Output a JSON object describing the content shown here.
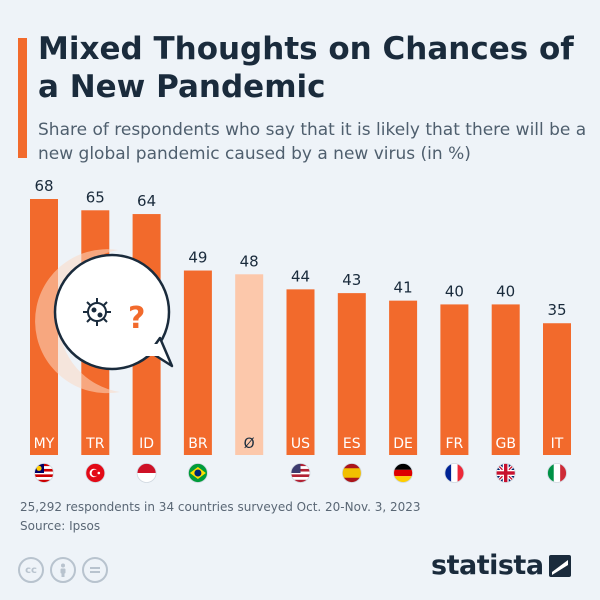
{
  "title": "Mixed Thoughts on Chances of a New Pandemic",
  "subtitle": "Share of respondents who say that it is likely that there will be a new global pandemic caused by a new virus (in %)",
  "footer_note": "25,292 respondents in 34 countries surveyed Oct. 20-Nov. 3, 2023",
  "source": "Source: Ipsos",
  "logo": "statista",
  "colors": {
    "bar": "#f26a2c",
    "average_bar": "#fcc8ab",
    "text": "#1a2b3c",
    "background": "#eef3f8"
  },
  "chart_data": {
    "type": "bar",
    "categories": [
      "MY",
      "TR",
      "ID",
      "BR",
      "Ø",
      "US",
      "ES",
      "DE",
      "FR",
      "GB",
      "IT"
    ],
    "values": [
      68,
      65,
      64,
      49,
      48,
      44,
      43,
      41,
      40,
      40,
      35
    ],
    "highlight_average_index": 4,
    "flags": [
      "flag-malaysia",
      "flag-turkey",
      "flag-indonesia",
      "flag-brazil",
      "",
      "flag-usa",
      "flag-spain",
      "flag-germany",
      "flag-france",
      "flag-uk",
      "flag-italy"
    ],
    "ylim": [
      0,
      70
    ]
  }
}
